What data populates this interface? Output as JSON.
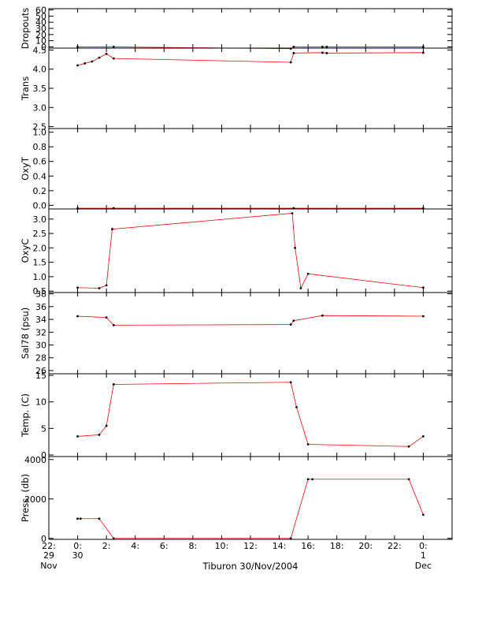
{
  "title": "Tiburon 30/Nov/2004",
  "colors": {
    "data": "#000000",
    "raw": "#ff0000",
    "axis": "#000000"
  },
  "x_axis": {
    "ticks": [
      {
        "hour": -2,
        "label": "22:",
        "sub1": "29",
        "sub2": "Nov"
      },
      {
        "hour": 0,
        "label": "0:",
        "sub1": "30",
        "sub2": ""
      },
      {
        "hour": 2,
        "label": "2:"
      },
      {
        "hour": 4,
        "label": "4:"
      },
      {
        "hour": 6,
        "label": "6:"
      },
      {
        "hour": 8,
        "label": "8:"
      },
      {
        "hour": 10,
        "label": "10:"
      },
      {
        "hour": 12,
        "label": "12:"
      },
      {
        "hour": 14,
        "label": "14:"
      },
      {
        "hour": 16,
        "label": "16:"
      },
      {
        "hour": 18,
        "label": "18:"
      },
      {
        "hour": 20,
        "label": "20:"
      },
      {
        "hour": 22,
        "label": "22:"
      },
      {
        "hour": 24,
        "label": "0:",
        "sub1": "1",
        "sub2": "Dec"
      }
    ],
    "xlim_hours": [
      -2.0,
      26.0
    ]
  },
  "chart_data": [
    {
      "type": "line",
      "ylabel": "Dropouts",
      "ylim": [
        -2,
        62
      ],
      "yticks": [
        0,
        10,
        20,
        30,
        40,
        50,
        60
      ],
      "series": [
        {
          "x": [
            0,
            2.5,
            14.8,
            15.0,
            17.0,
            17.3,
            24.0
          ],
          "y": [
            0,
            0,
            -3,
            0,
            0,
            0,
            0
          ]
        }
      ]
    },
    {
      "type": "line",
      "ylabel": "Trans",
      "ylim": [
        2.45,
        4.55
      ],
      "yticks": [
        2.5,
        3.0,
        3.5,
        4.0,
        4.5
      ],
      "yticklabels": [
        "2.5",
        "3.0",
        "3.5",
        "4.0",
        "4.5"
      ],
      "series": [
        {
          "x": [
            0,
            0.5,
            1.0,
            1.5,
            2.0,
            2.5,
            14.8,
            15.0,
            17.0,
            17.3,
            24.0
          ],
          "y": [
            4.1,
            4.15,
            4.2,
            4.3,
            4.4,
            4.28,
            4.18,
            4.42,
            4.43,
            4.42,
            4.43
          ]
        }
      ]
    },
    {
      "type": "line",
      "ylabel": "OxyT",
      "ylim": [
        -0.05,
        1.05
      ],
      "yticks": [
        0.0,
        0.2,
        0.4,
        0.6,
        0.8,
        1.0
      ],
      "yticklabels": [
        "0.0",
        "0.2",
        "0.4",
        "0.6",
        "0.8",
        "1.0"
      ],
      "series": [
        {
          "x": [
            0,
            2.5,
            15.0,
            24.0
          ],
          "y": [
            -0.04,
            -0.04,
            -0.04,
            -0.04
          ]
        }
      ]
    },
    {
      "type": "line",
      "ylabel": "OxyC",
      "ylim": [
        0.45,
        3.35
      ],
      "yticks": [
        0.5,
        1.0,
        1.5,
        2.0,
        2.5,
        3.0
      ],
      "yticklabels": [
        "0.5",
        "1.0",
        "1.5",
        "2.0",
        "2.5",
        "3.0"
      ],
      "series": [
        {
          "x": [
            0,
            1.5,
            2.0,
            2.4,
            14.9,
            15.1,
            15.5,
            16.0,
            24.0
          ],
          "y": [
            0.62,
            0.6,
            0.7,
            2.65,
            3.2,
            2.0,
            0.6,
            1.1,
            0.62
          ]
        }
      ]
    },
    {
      "type": "line",
      "ylabel": "Sal78 (psu)",
      "ylim": [
        25.5,
        38.2
      ],
      "yticks": [
        26,
        28,
        30,
        32,
        34,
        36,
        38
      ],
      "series": [
        {
          "x": [
            0,
            2.0,
            2.5,
            14.8,
            15.0,
            17.0,
            24.0
          ],
          "y": [
            34.5,
            34.3,
            33.1,
            33.2,
            33.8,
            34.6,
            34.5
          ]
        }
      ]
    },
    {
      "type": "line",
      "ylabel": "Temp. (C)",
      "ylim": [
        -0.3,
        15.3
      ],
      "yticks": [
        0,
        5,
        10,
        15
      ],
      "series": [
        {
          "x": [
            0,
            1.5,
            2.0,
            2.5,
            14.8,
            15.2,
            16.0,
            23.0,
            24.0
          ],
          "y": [
            3.5,
            3.8,
            5.5,
            13.3,
            13.7,
            9.0,
            2.0,
            1.6,
            3.5
          ]
        }
      ]
    },
    {
      "type": "line",
      "ylabel": "Press. (db)",
      "ylim": [
        -50,
        4150
      ],
      "yticks": [
        0,
        2000,
        4000
      ],
      "series": [
        {
          "x": [
            0,
            0.2,
            1.5,
            2.5,
            14.8,
            16.0,
            16.3,
            23.0,
            24.0
          ],
          "y": [
            1000,
            1000,
            1000,
            0,
            0,
            3000,
            3000,
            3000,
            1200
          ]
        }
      ]
    }
  ]
}
